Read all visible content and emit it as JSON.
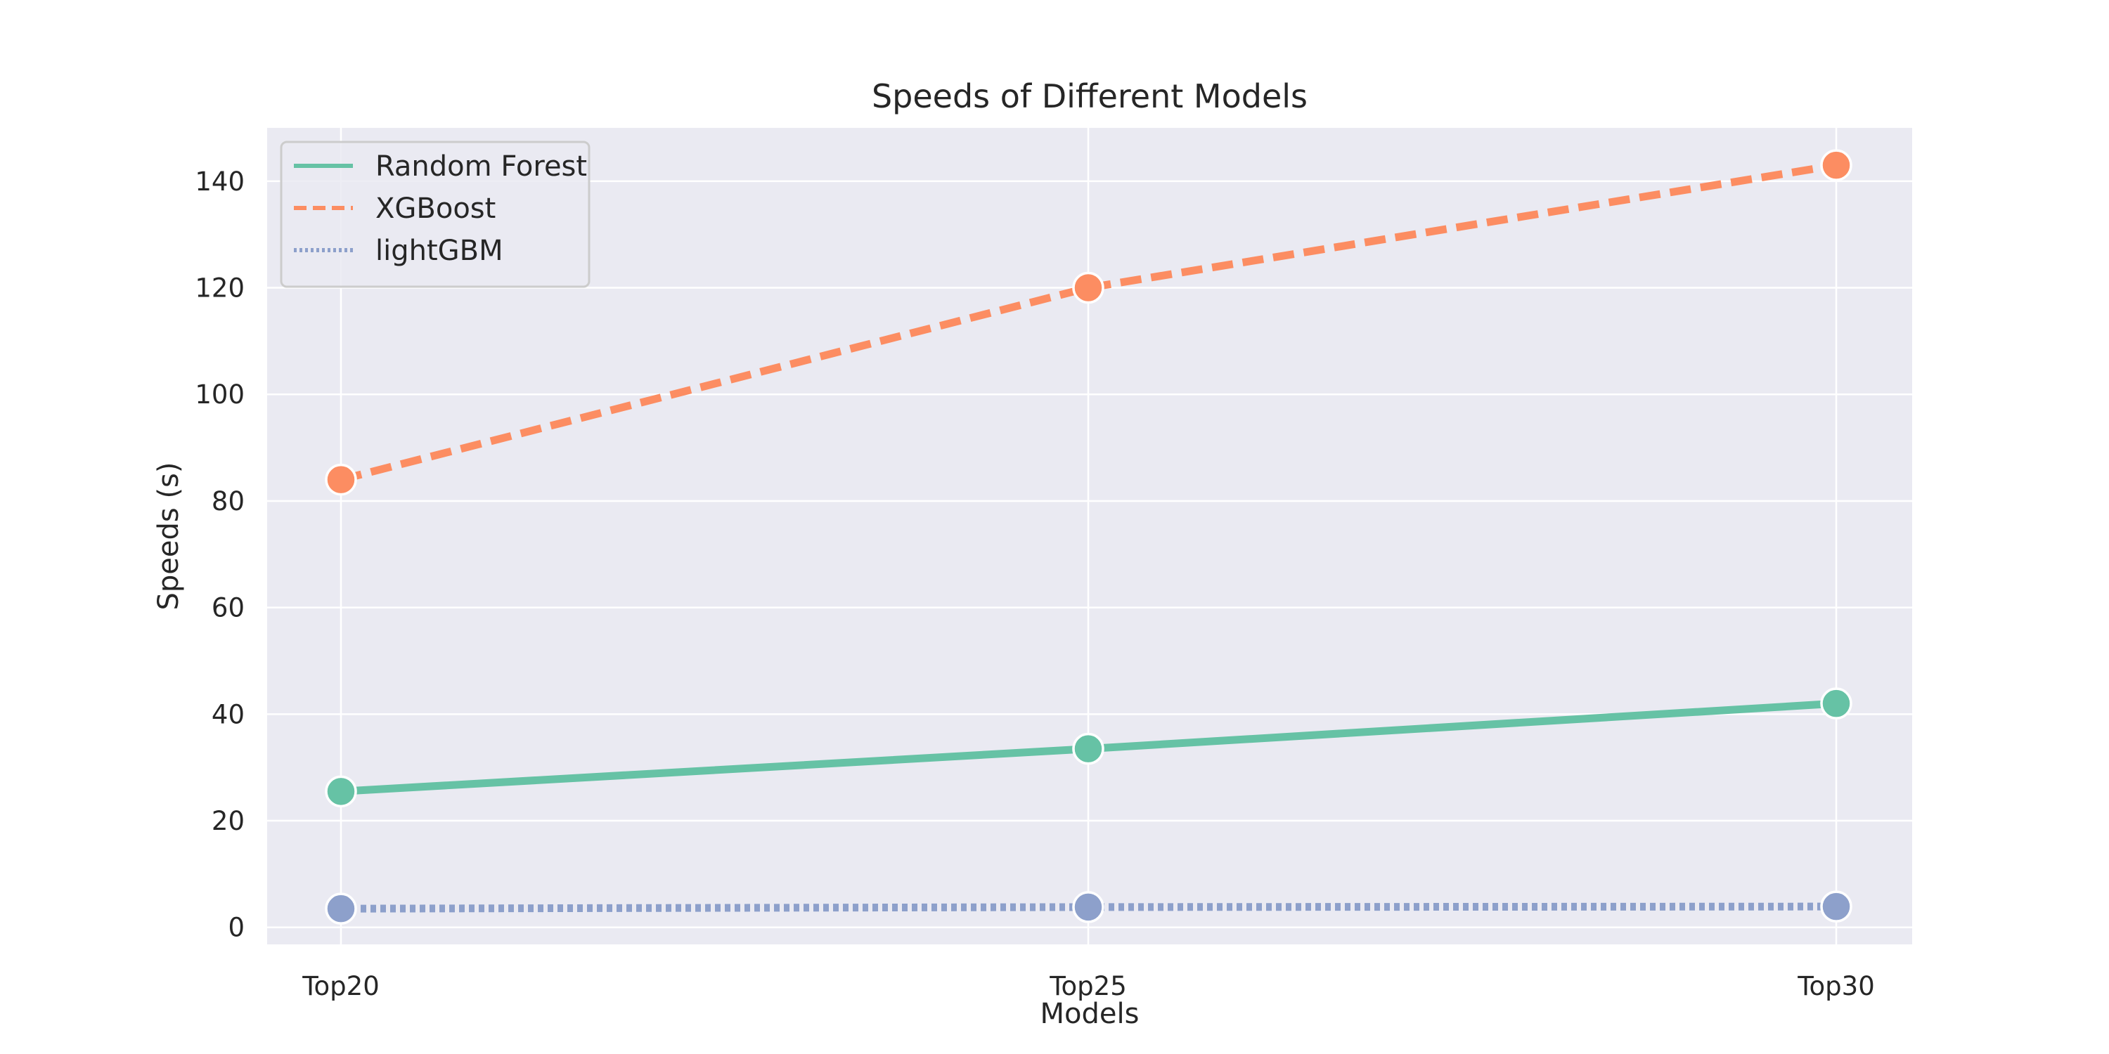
{
  "chart_data": {
    "type": "line",
    "title": "Speeds of Different Models",
    "xlabel": "Models",
    "ylabel": "Speeds (s)",
    "categories": [
      "Top20",
      "Top25",
      "Top30"
    ],
    "ylim": [
      -3.2,
      150
    ],
    "yticks": [
      0,
      20,
      40,
      60,
      80,
      100,
      120,
      140
    ],
    "grid": true,
    "legend_position": "top-left",
    "background_color": "#eaeaf2",
    "series": [
      {
        "name": "Random Forest",
        "values": [
          25.5,
          33.5,
          42
        ],
        "color": "#66c2a5",
        "line_style": "solid"
      },
      {
        "name": "XGBoost",
        "values": [
          84,
          120,
          143
        ],
        "color": "#fc8d62",
        "line_style": "dashed"
      },
      {
        "name": "lightGBM",
        "values": [
          3.5,
          3.8,
          3.9
        ],
        "color": "#8da0cb",
        "line_style": "dotted"
      }
    ]
  }
}
